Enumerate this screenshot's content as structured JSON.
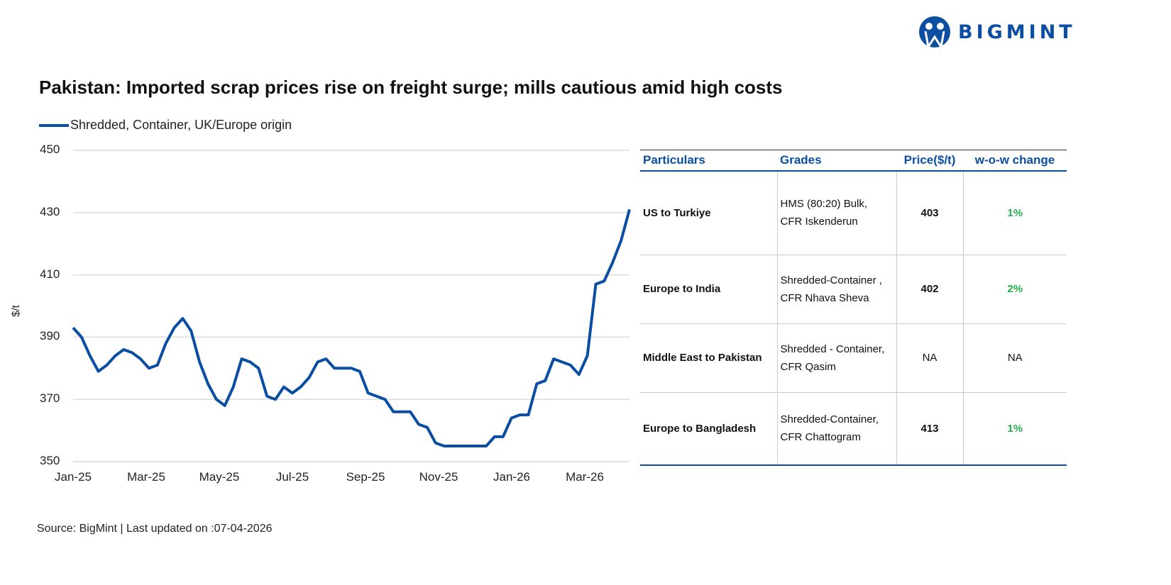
{
  "brand": {
    "name": "BIGMINT",
    "color": "#0c4ea2"
  },
  "title": "Pakistan: Imported scrap prices rise on freight surge; mills cautious amid high costs",
  "source": "Source: BigMint | Last updated on :07-04-2026",
  "chart_data": {
    "type": "line",
    "ylabel": "$/t",
    "ylim": [
      350,
      450
    ],
    "yticks": [
      "350",
      "370",
      "390",
      "410",
      "430",
      "450"
    ],
    "xticks": [
      "Jan-25",
      "Mar-25",
      "May-25",
      "Jul-25",
      "Sep-25",
      "Nov-25",
      "Jan-26",
      "Mar-26"
    ],
    "grid": true,
    "legend_position": "top-left",
    "series": [
      {
        "name": "Shredded, Container, UK/Europe origin",
        "color": "#0a4ea3",
        "values": [
          393,
          390,
          384,
          379,
          381,
          384,
          386,
          385,
          383,
          380,
          381,
          388,
          393,
          396,
          392,
          382,
          375,
          370,
          368,
          374,
          383,
          382,
          380,
          371,
          370,
          374,
          372,
          374,
          377,
          382,
          383,
          380,
          380,
          380,
          379,
          372,
          371,
          370,
          366,
          366,
          366,
          362,
          361,
          356,
          355,
          355,
          355,
          355,
          355,
          355,
          358,
          358,
          364,
          365,
          365,
          375,
          376,
          383,
          382,
          381,
          378,
          384,
          407,
          408,
          414,
          421,
          431
        ]
      }
    ]
  },
  "table": {
    "headers": [
      "Particulars",
      "Grades",
      "Price($/t)",
      "w-o-w change"
    ],
    "rows": [
      {
        "particular": "US to Turkiye",
        "grade1": "HMS (80:20) Bulk,",
        "grade2": "CFR Iskenderun",
        "price": "403",
        "change": "1%"
      },
      {
        "particular": "Europe to India",
        "grade1": "Shredded-Container ,",
        "grade2": "CFR Nhava Sheva",
        "price": "402",
        "change": "2%"
      },
      {
        "particular": "Middle East to Pakistan",
        "grade1": "Shredded - Container,",
        "grade2": "CFR Qasim",
        "price": "NA",
        "change": "NA"
      },
      {
        "particular": "Europe to Bangladesh",
        "grade1": "Shredded-Container,",
        "grade2": "CFR Chattogram",
        "price": "413",
        "change": "1%"
      }
    ]
  }
}
